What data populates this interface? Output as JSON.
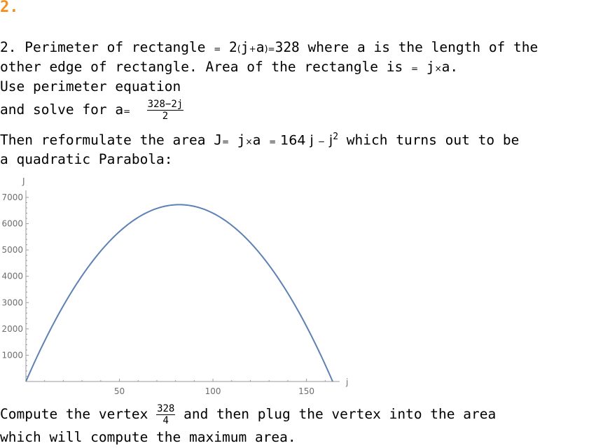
{
  "heading": "2.",
  "line1": {
    "a": "2. Perimeter of rectangle",
    "eq1": "=",
    "b": " 2",
    "lp": "(",
    "j": "j",
    "plus": "+",
    "a2": "a",
    "rp": ")",
    "eq2": "=",
    "c": "328 where a is the length of the"
  },
  "line2": {
    "a": "other edge of rectangle. Area of the rectangle is",
    "eq": "=",
    "b": " j",
    "times": "×",
    "c": "a."
  },
  "line3": "Use perimeter equation",
  "line4": {
    "a": "and solve for a",
    "eq": "=",
    "num": "328−2j",
    "den": "2"
  },
  "line5": {
    "a": "Then reformulate the area J",
    "eq1": "=",
    "b": " j",
    "times": "×",
    "c": "a ",
    "eq2": "=",
    "d": " 164 j ",
    "minus": "−",
    "e": " j",
    "sup": "2",
    "f": " which turns out to be"
  },
  "line6": "a quadratic Parabola:",
  "line7": {
    "a": "Compute the vertex ",
    "num": "328",
    "den": "4",
    "b": " and then plug the vertex into the area"
  },
  "line8": "which will compute the maximum area.",
  "chart_data": {
    "type": "line",
    "title": "",
    "xlabel": "j",
    "ylabel": "J",
    "function": "J = 164 j − j^2",
    "xlim": [
      0,
      164
    ],
    "ylim": [
      0,
      7000
    ],
    "xticks": [
      50,
      100,
      150
    ],
    "yticks": [
      1000,
      2000,
      3000,
      4000,
      5000,
      6000,
      7000
    ],
    "series": [
      {
        "color": "#5e81b5",
        "x": [
          0,
          10,
          20,
          30,
          40,
          50,
          60,
          70,
          82,
          90,
          100,
          110,
          120,
          130,
          140,
          150,
          160,
          164
        ],
        "y": [
          0,
          1540,
          2880,
          4020,
          4960,
          5700,
          6240,
          6580,
          6724,
          6660,
          6400,
          5940,
          5280,
          4420,
          3360,
          2100,
          640,
          0
        ]
      }
    ]
  }
}
